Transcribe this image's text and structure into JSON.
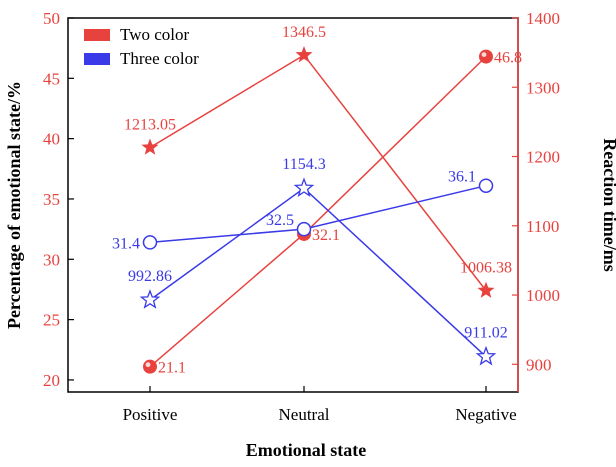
{
  "chart_data": {
    "type": "line",
    "categories": [
      "Positive",
      "Neutral",
      "Negative"
    ],
    "xlabel": "Emotional state",
    "ylabel_left": "Percentage of emotional state/%",
    "ylabel_right": "Reaction time/ms",
    "ylim_left": [
      19,
      50
    ],
    "ylim_right": [
      860,
      1400
    ],
    "yticks_left": [
      20,
      25,
      30,
      35,
      40,
      45,
      50
    ],
    "yticks_right": [
      900,
      1000,
      1100,
      1200,
      1300,
      1400
    ],
    "legend": {
      "placement": "top-left",
      "entries": [
        {
          "label": "Two color",
          "color": "#e8423f"
        },
        {
          "label": "Three color",
          "color": "#3a3ae8"
        }
      ]
    },
    "series": [
      {
        "group": "Two color",
        "axis": "left",
        "marker": "circle-filled",
        "color": "#e8423f",
        "values": [
          21.1,
          32.1,
          46.8
        ],
        "labels": [
          "21.1",
          "32.1",
          "46.8"
        ]
      },
      {
        "group": "Two color",
        "axis": "right",
        "marker": "star-filled",
        "color": "#e8423f",
        "values": [
          1213.05,
          1346.5,
          1006.38
        ],
        "labels": [
          "1213.05",
          "1346.5",
          "1006.38"
        ]
      },
      {
        "group": "Three color",
        "axis": "left",
        "marker": "circle-open",
        "color": "#3a3ae8",
        "values": [
          31.4,
          32.5,
          36.1
        ],
        "labels": [
          "31.4",
          "32.5",
          "36.1"
        ]
      },
      {
        "group": "Three color",
        "axis": "right",
        "marker": "star-open",
        "color": "#3a3ae8",
        "values": [
          992.86,
          1154.3,
          911.02
        ],
        "labels": [
          "992.86",
          "1154.3",
          "911.02"
        ]
      }
    ]
  }
}
